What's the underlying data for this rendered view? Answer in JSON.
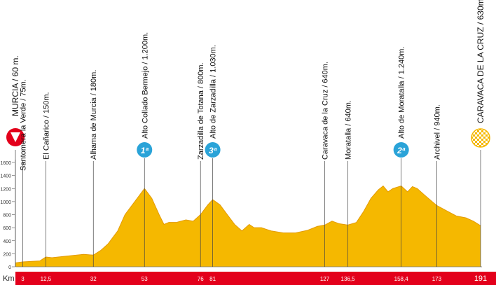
{
  "chart_data": {
    "type": "area",
    "color": "#f5b800",
    "line_color": "#e39a00",
    "x": [
      0,
      3,
      10,
      12.5,
      15,
      20,
      28,
      32,
      35,
      38,
      42,
      45,
      48,
      51,
      53,
      56,
      59,
      61,
      63,
      66,
      70,
      73,
      76,
      79,
      81,
      84,
      87,
      90,
      93,
      96,
      98,
      101,
      105,
      110,
      115,
      120,
      124,
      127,
      130,
      133,
      136.5,
      140,
      143,
      146,
      149,
      151,
      153,
      155,
      158.4,
      161,
      163,
      165,
      168,
      173,
      177,
      181,
      185,
      188,
      191
    ],
    "values": [
      60,
      75,
      90,
      150,
      140,
      160,
      190,
      180,
      250,
      350,
      550,
      800,
      950,
      1100,
      1200,
      1050,
      800,
      650,
      680,
      680,
      720,
      700,
      800,
      950,
      1030,
      950,
      800,
      650,
      550,
      650,
      600,
      600,
      550,
      520,
      520,
      560,
      620,
      640,
      700,
      660,
      640,
      680,
      850,
      1050,
      1180,
      1240,
      1150,
      1200,
      1240,
      1150,
      1230,
      1200,
      1100,
      940,
      860,
      780,
      750,
      700,
      630
    ],
    "xlim": [
      0,
      191
    ],
    "ylim": [
      0,
      1600
    ],
    "yticks": [
      0,
      200,
      400,
      600,
      800,
      1000,
      1200,
      1400,
      1600
    ],
    "x_label": "Km",
    "xticks": [
      3,
      {
        "value": 12.5,
        "label": "12,5"
      },
      32,
      53,
      76,
      81,
      127,
      {
        "value": 136.5,
        "label": "136,5"
      },
      {
        "value": 158.4,
        "label": "158,4"
      },
      173,
      191
    ],
    "waypoints": [
      {
        "km": 0,
        "label": "MURCIA / 60 m."
      },
      {
        "km": 3,
        "label": "Santomera la Verde / 75m."
      },
      {
        "km": 12.5,
        "label": "El Cañarico / 150m."
      },
      {
        "km": 32,
        "label": "Alhama de Murcia / 180m."
      },
      {
        "km": 53,
        "label": "Alto Collado Bermejo / 1.200m.",
        "category": "1ª"
      },
      {
        "km": 76,
        "label": "Zarzadilla de Totana / 800m."
      },
      {
        "km": 81,
        "label": "Alto de Zarzadilla / 1.030m.",
        "category": "3ª"
      },
      {
        "km": 127,
        "label": "Caravaca de la Cruz / 640m."
      },
      {
        "km": 136.5,
        "label": "Moratalla / 640m."
      },
      {
        "km": 158.4,
        "label": "Alto de Moratalla / 1.240m.",
        "category": "2ª"
      },
      {
        "km": 173,
        "label": "Archivel / 940m."
      },
      {
        "km": 191,
        "label": "CARAVACA DE LA CRUZ / 630m."
      }
    ]
  }
}
